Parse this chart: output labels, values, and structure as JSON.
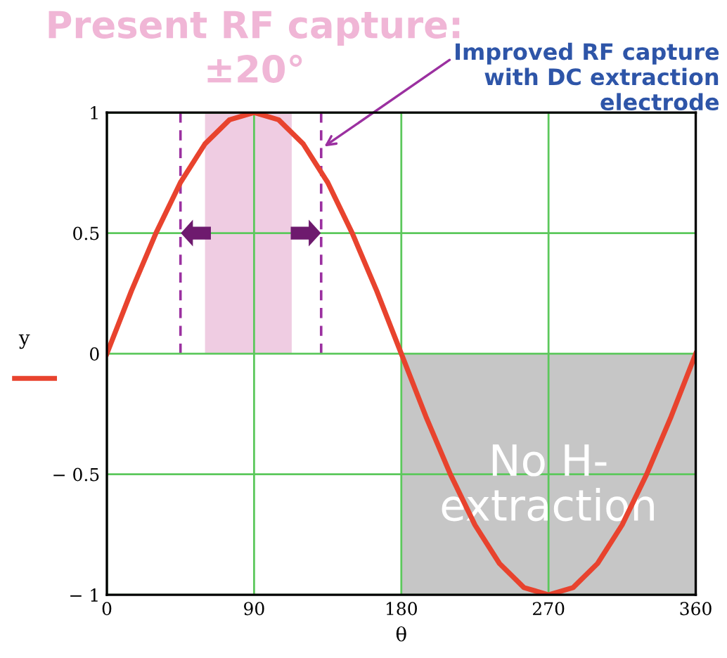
{
  "chart_data": {
    "type": "line",
    "title": "Present RF capture:\n±20°",
    "xlabel": "θ",
    "ylabel": "y",
    "x": [
      0,
      15,
      30,
      45,
      60,
      75,
      90,
      105,
      120,
      135,
      150,
      165,
      180,
      195,
      210,
      225,
      240,
      255,
      270,
      285,
      300,
      315,
      330,
      345,
      360
    ],
    "series": [
      {
        "color": "#e8432e",
        "values": [
          0,
          0.26,
          0.5,
          0.71,
          0.87,
          0.97,
          1,
          0.97,
          0.87,
          0.71,
          0.5,
          0.26,
          0,
          -0.26,
          -0.5,
          -0.71,
          -0.87,
          -0.97,
          -1,
          -0.97,
          -0.87,
          -0.71,
          -0.5,
          -0.26,
          0
        ]
      }
    ],
    "xlim": [
      0,
      360
    ],
    "ylim": [
      -1,
      1
    ],
    "xticks": [
      0,
      90,
      180,
      270,
      360
    ],
    "yticks": [
      {
        "value": -1,
        "label": "− 1"
      },
      {
        "value": -0.5,
        "label": "− 0.5"
      },
      0,
      0.5,
      1
    ],
    "grid": true,
    "marker": "none",
    "line_style": "solid",
    "bands": [
      {
        "axis": "x",
        "from": 60,
        "to": 113,
        "color": "#efcce2"
      },
      {
        "axis": "x",
        "from": 180,
        "to": 360,
        "label": "No H-\nextraction",
        "color": "#c6c6c6"
      }
    ],
    "ref_lines": [
      {
        "axis": "x",
        "value": 45,
        "color": "#9b30a0",
        "line_style": "dashed"
      },
      {
        "axis": "x",
        "value": 131,
        "color": "#9b30a0",
        "line_style": "dashed"
      }
    ],
    "annotations": [
      {
        "text": "Improved RF capture\nwith DC extraction\nelectrode",
        "x": 131,
        "y": 0.85
      }
    ]
  }
}
